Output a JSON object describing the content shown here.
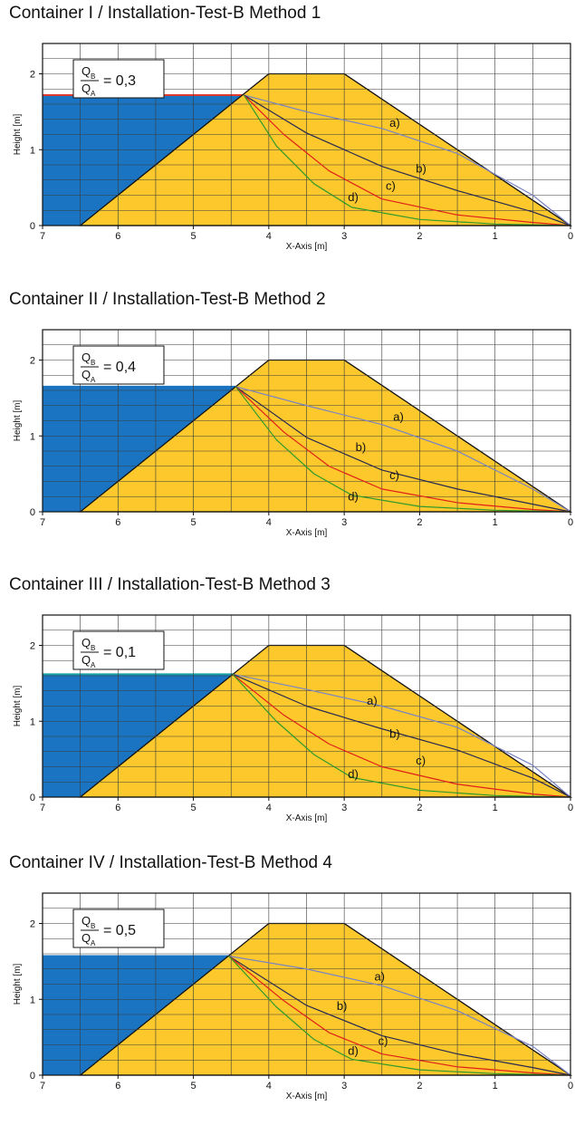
{
  "chart_data": [
    {
      "type": "area",
      "title": "Container I / Installation-Test-B Method 1",
      "xlabel": "X-Axis [m]",
      "ylabel": "Height [m]",
      "xlim": [
        7,
        0
      ],
      "ylim": [
        0,
        2.4
      ],
      "x_reversed": true,
      "grid": true,
      "xticks": [
        "7",
        "6",
        "5",
        "4",
        "3",
        "2",
        "1",
        "0"
      ],
      "yticks": [
        "0",
        "1",
        "2"
      ],
      "ratio": {
        "numerator": "Q",
        "numerator_sub": "B",
        "denominator": "Q",
        "denominator_sub": "A",
        "value": "= 0,3"
      },
      "dam": {
        "color": "#fcc82c",
        "points": [
          [
            6.5,
            0
          ],
          [
            4,
            2
          ],
          [
            3,
            2
          ],
          [
            0,
            0
          ]
        ]
      },
      "water": {
        "color": "#1b74c2",
        "surface_color": "#e03a2e",
        "level": 1.72
      },
      "series": [
        {
          "name": "a)",
          "color": "#7a84c4",
          "label_at": [
            2.4,
            1.3
          ],
          "points": [
            [
              4.33,
              1.72
            ],
            [
              3.5,
              1.5
            ],
            [
              2.5,
              1.28
            ],
            [
              1.5,
              0.95
            ],
            [
              0.5,
              0.4
            ],
            [
              0,
              0
            ]
          ]
        },
        {
          "name": "b)",
          "color": "#2a2a50",
          "label_at": [
            2.05,
            0.7
          ],
          "points": [
            [
              4.33,
              1.72
            ],
            [
              3.5,
              1.22
            ],
            [
              2.5,
              0.78
            ],
            [
              1.5,
              0.46
            ],
            [
              0.5,
              0.18
            ],
            [
              0,
              0
            ]
          ]
        },
        {
          "name": "c)",
          "color": "#e02018",
          "label_at": [
            2.45,
            0.47
          ],
          "points": [
            [
              4.33,
              1.72
            ],
            [
              3.8,
              1.2
            ],
            [
              3.2,
              0.72
            ],
            [
              2.5,
              0.35
            ],
            [
              1.5,
              0.14
            ],
            [
              0.5,
              0.04
            ],
            [
              0,
              0
            ]
          ]
        },
        {
          "name": "d)",
          "color": "#2f9a2a",
          "label_at": [
            2.95,
            0.32
          ],
          "points": [
            [
              4.33,
              1.72
            ],
            [
              3.9,
              1.05
            ],
            [
              3.4,
              0.55
            ],
            [
              2.9,
              0.24
            ],
            [
              2.0,
              0.08
            ],
            [
              1.0,
              0.02
            ],
            [
              0,
              0
            ]
          ]
        }
      ]
    },
    {
      "type": "area",
      "title": "Container II / Installation-Test-B Method 2",
      "xlabel": "X-Axis [m]",
      "ylabel": "Height [m]",
      "xlim": [
        7,
        0
      ],
      "ylim": [
        0,
        2.4
      ],
      "x_reversed": true,
      "grid": true,
      "xticks": [
        "7",
        "6",
        "5",
        "4",
        "3",
        "2",
        "1",
        "0"
      ],
      "yticks": [
        "0",
        "1",
        "2"
      ],
      "ratio": {
        "numerator": "Q",
        "numerator_sub": "B",
        "denominator": "Q",
        "denominator_sub": "A",
        "value": "= 0,4"
      },
      "dam": {
        "color": "#fcc82c",
        "points": [
          [
            6.5,
            0
          ],
          [
            4,
            2
          ],
          [
            3,
            2
          ],
          [
            0,
            0
          ]
        ]
      },
      "water": {
        "color": "#1b74c2",
        "surface_color": "#1b74c2",
        "level": 1.65
      },
      "series": [
        {
          "name": "a)",
          "color": "#7a84c4",
          "label_at": [
            2.35,
            1.2
          ],
          "points": [
            [
              4.44,
              1.65
            ],
            [
              3.5,
              1.4
            ],
            [
              2.5,
              1.15
            ],
            [
              1.5,
              0.8
            ],
            [
              0.5,
              0.3
            ],
            [
              0,
              0
            ]
          ]
        },
        {
          "name": "b)",
          "color": "#2a2a50",
          "label_at": [
            2.85,
            0.8
          ],
          "points": [
            [
              4.44,
              1.65
            ],
            [
              3.5,
              0.98
            ],
            [
              2.5,
              0.55
            ],
            [
              1.5,
              0.3
            ],
            [
              0.5,
              0.1
            ],
            [
              0,
              0
            ]
          ]
        },
        {
          "name": "c)",
          "color": "#e02018",
          "label_at": [
            2.4,
            0.43
          ],
          "points": [
            [
              4.44,
              1.65
            ],
            [
              3.8,
              1.05
            ],
            [
              3.2,
              0.6
            ],
            [
              2.5,
              0.3
            ],
            [
              1.5,
              0.12
            ],
            [
              0.5,
              0.03
            ],
            [
              0,
              0
            ]
          ]
        },
        {
          "name": "d)",
          "color": "#2f9a2a",
          "label_at": [
            2.95,
            0.15
          ],
          "points": [
            [
              4.44,
              1.65
            ],
            [
              3.9,
              0.95
            ],
            [
              3.4,
              0.5
            ],
            [
              2.9,
              0.22
            ],
            [
              2.0,
              0.07
            ],
            [
              1.0,
              0.02
            ],
            [
              0,
              0
            ]
          ]
        }
      ]
    },
    {
      "type": "area",
      "title": "Container III / Installation-Test-B Method 3",
      "xlabel": "X-Axis [m]",
      "ylabel": "Height [m]",
      "xlim": [
        7,
        0
      ],
      "ylim": [
        0,
        2.4
      ],
      "x_reversed": true,
      "grid": true,
      "xticks": [
        "7",
        "6",
        "5",
        "4",
        "3",
        "2",
        "1",
        "0"
      ],
      "yticks": [
        "0",
        "1",
        "2"
      ],
      "ratio": {
        "numerator": "Q",
        "numerator_sub": "B",
        "denominator": "Q",
        "denominator_sub": "A",
        "value": "= 0,1"
      },
      "dam": {
        "color": "#fcc82c",
        "points": [
          [
            6.5,
            0
          ],
          [
            4,
            2
          ],
          [
            3,
            2
          ],
          [
            0,
            0
          ]
        ]
      },
      "water": {
        "color": "#1b74c2",
        "surface_color": "#18a0a8",
        "level": 1.62
      },
      "series": [
        {
          "name": "a)",
          "color": "#7a84c4",
          "label_at": [
            2.7,
            1.22
          ],
          "points": [
            [
              4.48,
              1.62
            ],
            [
              3.5,
              1.42
            ],
            [
              2.5,
              1.2
            ],
            [
              1.5,
              0.92
            ],
            [
              0.5,
              0.42
            ],
            [
              0,
              0
            ]
          ]
        },
        {
          "name": "b)",
          "color": "#2a2a50",
          "label_at": [
            2.4,
            0.78
          ],
          "points": [
            [
              4.48,
              1.62
            ],
            [
              3.5,
              1.2
            ],
            [
              2.5,
              0.9
            ],
            [
              1.5,
              0.62
            ],
            [
              0.5,
              0.25
            ],
            [
              0,
              0
            ]
          ]
        },
        {
          "name": "c)",
          "color": "#e02018",
          "label_at": [
            2.05,
            0.43
          ],
          "points": [
            [
              4.48,
              1.62
            ],
            [
              3.8,
              1.08
            ],
            [
              3.2,
              0.7
            ],
            [
              2.5,
              0.4
            ],
            [
              1.5,
              0.17
            ],
            [
              0.5,
              0.04
            ],
            [
              0,
              0
            ]
          ]
        },
        {
          "name": "d)",
          "color": "#2f9a2a",
          "label_at": [
            2.95,
            0.25
          ],
          "points": [
            [
              4.48,
              1.62
            ],
            [
              3.9,
              1.0
            ],
            [
              3.4,
              0.56
            ],
            [
              2.9,
              0.26
            ],
            [
              2.0,
              0.09
            ],
            [
              1.0,
              0.02
            ],
            [
              0,
              0
            ]
          ]
        }
      ]
    },
    {
      "type": "area",
      "title": "Container IV / Installation-Test-B Method 4",
      "xlabel": "X-Axis [m]",
      "ylabel": "Height [m]",
      "xlim": [
        7,
        0
      ],
      "ylim": [
        0,
        2.4
      ],
      "x_reversed": true,
      "grid": true,
      "xticks": [
        "7",
        "6",
        "5",
        "4",
        "3",
        "2",
        "1",
        "0"
      ],
      "yticks": [
        "0",
        "1",
        "2"
      ],
      "ratio": {
        "numerator": "Q",
        "numerator_sub": "B",
        "denominator": "Q",
        "denominator_sub": "A",
        "value": "= 0,5"
      },
      "dam": {
        "color": "#fcc82c",
        "points": [
          [
            6.5,
            0
          ],
          [
            4,
            2
          ],
          [
            3,
            2
          ],
          [
            0,
            0
          ]
        ]
      },
      "water": {
        "color": "#1b74c2",
        "surface_color": "#1b74c2",
        "level": 1.57
      },
      "series": [
        {
          "name": "a)",
          "color": "#7a84c4",
          "label_at": [
            2.6,
            1.25
          ],
          "points": [
            [
              4.53,
              1.57
            ],
            [
              3.5,
              1.4
            ],
            [
              2.5,
              1.18
            ],
            [
              1.5,
              0.85
            ],
            [
              0.5,
              0.38
            ],
            [
              0,
              0
            ]
          ]
        },
        {
          "name": "b)",
          "color": "#2a2a50",
          "label_at": [
            3.1,
            0.86
          ],
          "points": [
            [
              4.53,
              1.57
            ],
            [
              3.5,
              0.92
            ],
            [
              2.5,
              0.52
            ],
            [
              1.5,
              0.28
            ],
            [
              0.5,
              0.1
            ],
            [
              0,
              0
            ]
          ]
        },
        {
          "name": "c)",
          "color": "#e02018",
          "label_at": [
            2.55,
            0.4
          ],
          "points": [
            [
              4.53,
              1.57
            ],
            [
              3.8,
              0.98
            ],
            [
              3.2,
              0.56
            ],
            [
              2.5,
              0.28
            ],
            [
              1.5,
              0.11
            ],
            [
              0.5,
              0.03
            ],
            [
              0,
              0
            ]
          ]
        },
        {
          "name": "d)",
          "color": "#2f9a2a",
          "label_at": [
            2.95,
            0.27
          ],
          "points": [
            [
              4.53,
              1.57
            ],
            [
              3.9,
              0.9
            ],
            [
              3.4,
              0.47
            ],
            [
              2.9,
              0.21
            ],
            [
              2.0,
              0.07
            ],
            [
              1.0,
              0.02
            ],
            [
              0,
              0
            ]
          ]
        }
      ]
    }
  ]
}
